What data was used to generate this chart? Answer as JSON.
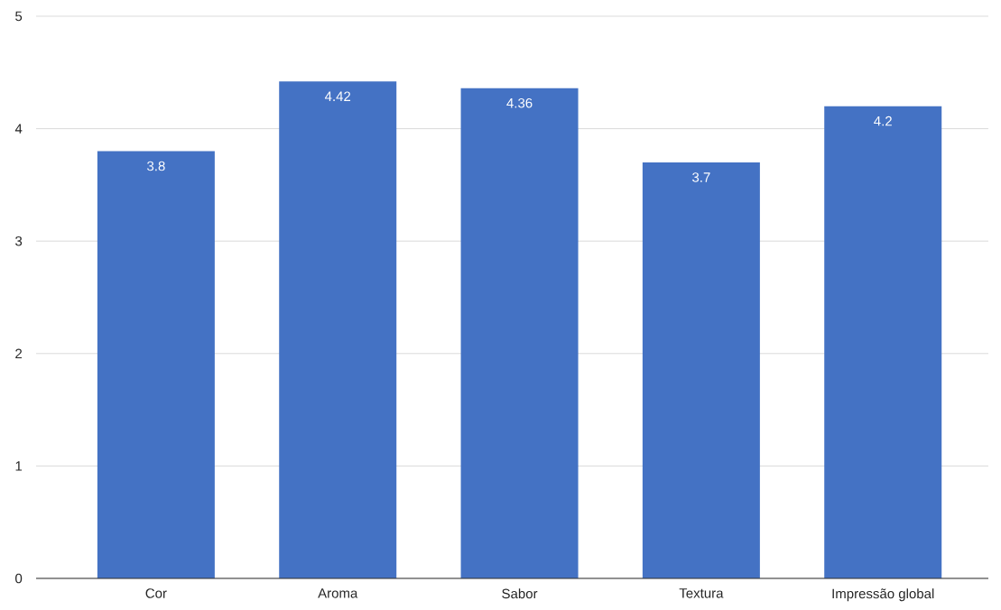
{
  "chart_data": {
    "type": "bar",
    "categories": [
      "Cor",
      "Aroma",
      "Sabor",
      "Textura",
      "Impressão global"
    ],
    "values": [
      3.8,
      4.42,
      4.36,
      3.7,
      4.2
    ],
    "color": "#4472c4",
    "ylim": [
      0,
      5
    ],
    "yticks": [
      0,
      1,
      2,
      3,
      4,
      5
    ],
    "grid": "y",
    "data_labels": true
  }
}
